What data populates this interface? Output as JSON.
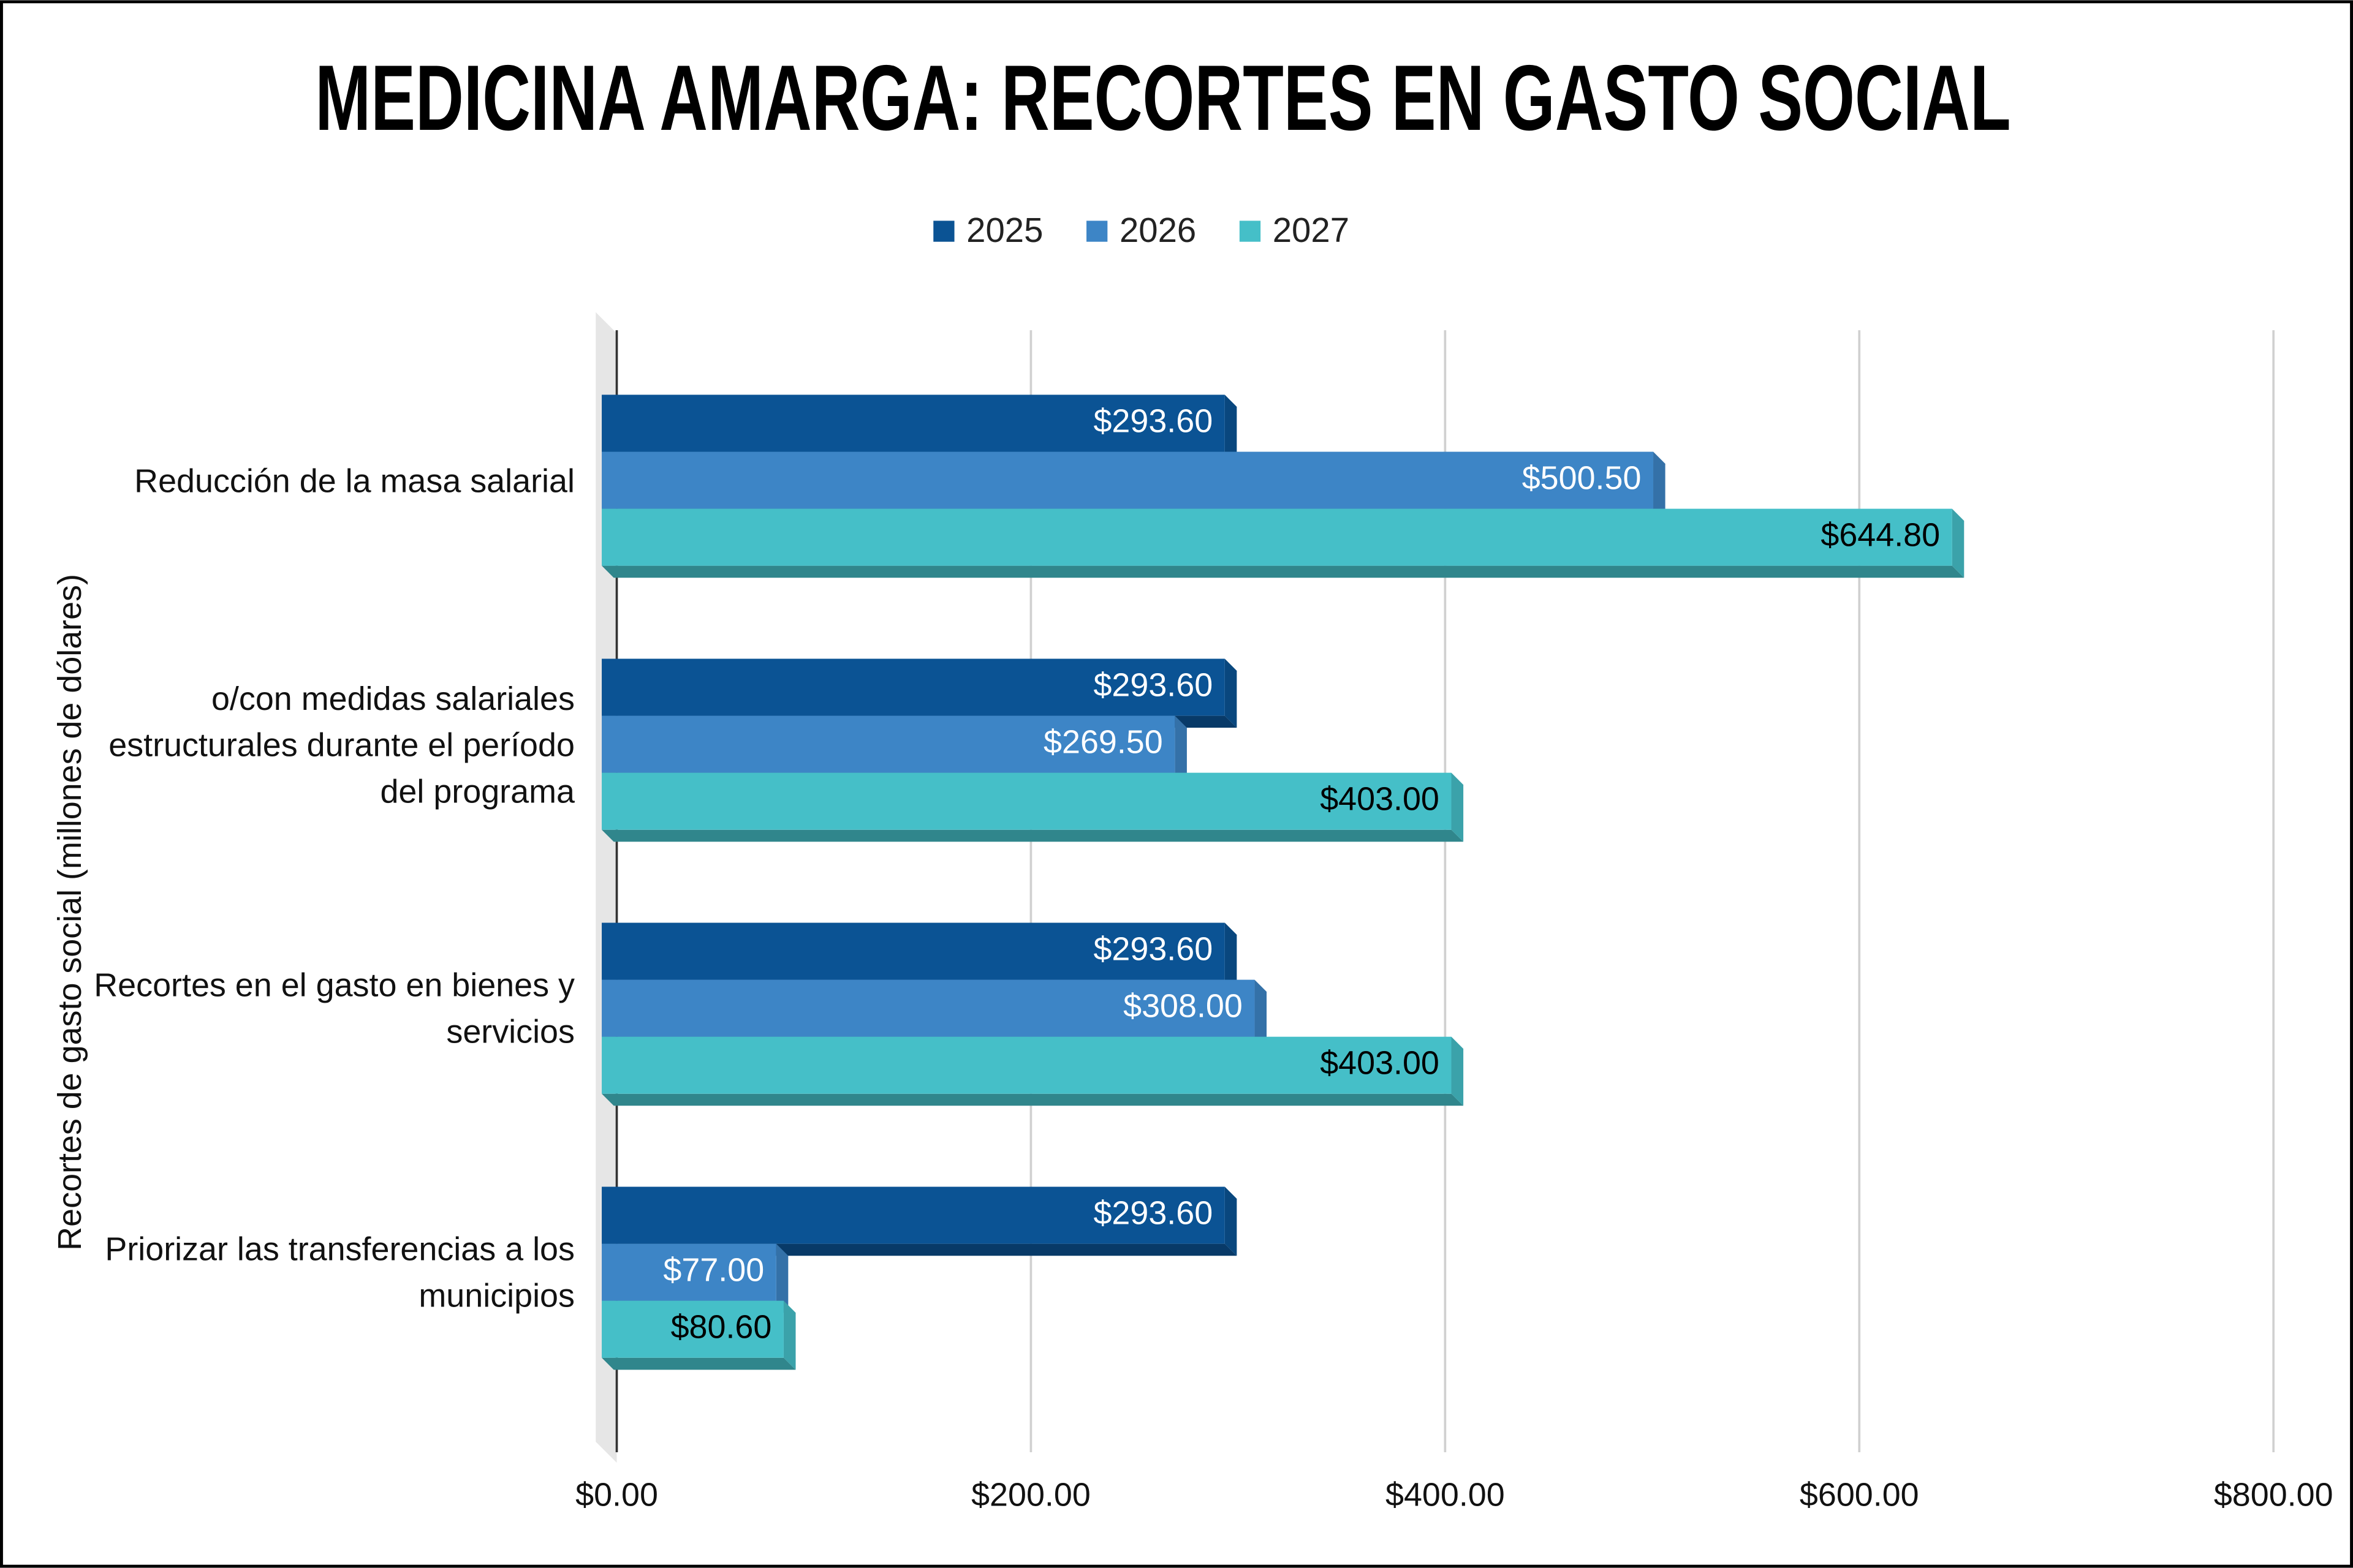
{
  "chart_data": {
    "type": "bar",
    "orientation": "horizontal",
    "title": "MEDICINA AMARGA: RECORTES EN GASTO SOCIAL",
    "y_axis_label": "Recortes de gasto social (millones de dólares)",
    "categories": [
      "Reducción de la masa salarial",
      "o/con medidas salariales estructurales durante el período del programa",
      "Recortes en el gasto en bienes y servicios",
      "Priorizar las transferencias a los municipios"
    ],
    "series": [
      {
        "name": "2025",
        "color": "#0b5394",
        "label_color": "#ffffff",
        "values": [
          293.6,
          293.6,
          293.6,
          293.6
        ],
        "value_labels": [
          "$293.60",
          "$293.60",
          "$293.60",
          "$293.60"
        ]
      },
      {
        "name": "2026",
        "color": "#3d85c6",
        "label_color": "#ffffff",
        "values": [
          500.5,
          269.5,
          308.0,
          77.0
        ],
        "value_labels": [
          "$500.50",
          "$269.50",
          "$308.00",
          "$77.00"
        ]
      },
      {
        "name": "2027",
        "color": "#45bfc8",
        "label_color": "#000000",
        "values": [
          644.8,
          403.0,
          403.0,
          80.6
        ],
        "value_labels": [
          "$644.80",
          "$403.00",
          "$403.00",
          "$80.60"
        ]
      }
    ],
    "xlim": [
      0,
      800
    ],
    "xticks": [
      {
        "value": 0,
        "label": "$0.00"
      },
      {
        "value": 200,
        "label": "$200.00"
      },
      {
        "value": 400,
        "label": "$400.00"
      },
      {
        "value": 600,
        "label": "$600.00"
      },
      {
        "value": 800,
        "label": "$800.00"
      }
    ],
    "grid": true,
    "legend": "top"
  }
}
